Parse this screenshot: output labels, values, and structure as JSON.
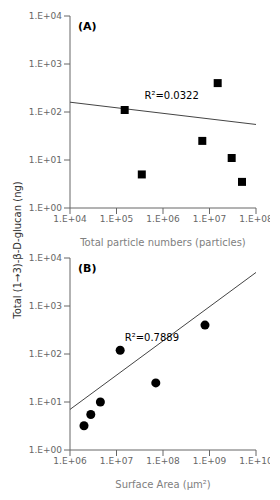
{
  "chart_data": [
    {
      "type": "scatter",
      "title": "(A)",
      "log": true,
      "grid": false,
      "xlabel": "Total particle numbers (particles)",
      "ylabel": "Total (1→3)-β-D-glucan (ng)",
      "xlim": [
        10000,
        100000000
      ],
      "ylim": [
        1,
        10000
      ],
      "xticks": [
        {
          "value": 10000,
          "label": "1.E+04"
        },
        {
          "value": 100000,
          "label": "1.E+05"
        },
        {
          "value": 1000000,
          "label": "1.E+06"
        },
        {
          "value": 10000000,
          "label": "1.E+07"
        },
        {
          "value": 100000000,
          "label": "1.E+08"
        }
      ],
      "yticks": [
        {
          "value": 1,
          "label": "1.E+00"
        },
        {
          "value": 10,
          "label": "1.E+01"
        },
        {
          "value": 100,
          "label": "1.E+02"
        },
        {
          "value": 1000,
          "label": "1.E+03"
        },
        {
          "value": 10000,
          "label": "1.E+04"
        }
      ],
      "series": [
        {
          "type": "line",
          "color": "#444444",
          "x": [
            10000,
            100000000
          ],
          "values": [
            160,
            55
          ]
        },
        {
          "type": "scatter",
          "color": "black",
          "marker": "square",
          "x": [
            150000,
            350000,
            7000000,
            15000000,
            30000000,
            50000000
          ],
          "values": [
            110,
            5.0,
            25,
            400,
            11,
            3.5
          ]
        }
      ],
      "annotations": [
        {
          "text": "R²=0.0322",
          "x": 400000,
          "y": 220
        }
      ]
    },
    {
      "type": "scatter",
      "title": "(B)",
      "log": true,
      "grid": false,
      "xlabel": "Surface Area (μm²)",
      "xlim": [
        1000000,
        10000000000
      ],
      "ylim": [
        1,
        10000
      ],
      "xticks": [
        {
          "value": 1000000,
          "label": "1.E+06"
        },
        {
          "value": 10000000,
          "label": "1.E+07"
        },
        {
          "value": 100000000,
          "label": "1.E+08"
        },
        {
          "value": 1000000000,
          "label": "1.E+09"
        },
        {
          "value": 10000000000,
          "label": "1.E+10"
        }
      ],
      "yticks": [
        {
          "value": 1,
          "label": "1.E+00"
        },
        {
          "value": 10,
          "label": "1.E+01"
        },
        {
          "value": 100,
          "label": "1.E+02"
        },
        {
          "value": 1000,
          "label": "1.E+03"
        },
        {
          "value": 10000,
          "label": "1.E+04"
        }
      ],
      "series": [
        {
          "type": "line",
          "color": "#444444",
          "x": [
            1000000,
            10000000000
          ],
          "values": [
            7.0,
            5000
          ]
        },
        {
          "type": "scatter",
          "color": "black",
          "marker": "circle",
          "x": [
            2000000,
            2800000,
            4500000,
            12000000,
            70000000,
            800000000
          ],
          "values": [
            3.2,
            5.5,
            10,
            120,
            25,
            400
          ]
        }
      ],
      "annotations": [
        {
          "text": "R²=0.7889",
          "x": 15000000,
          "y": 220
        }
      ]
    }
  ]
}
